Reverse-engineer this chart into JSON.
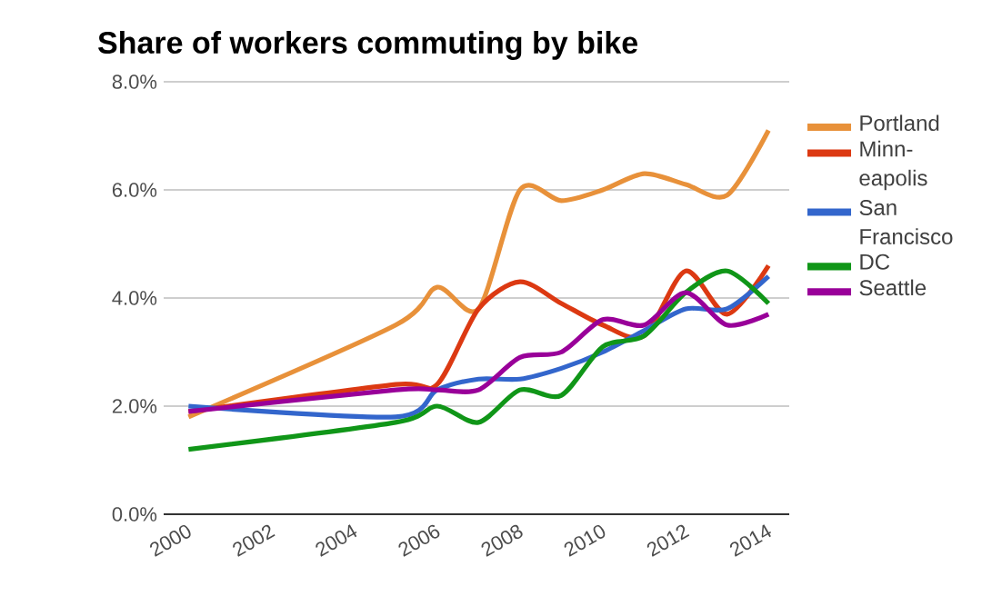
{
  "chart_data": {
    "type": "line",
    "title": "Share of workers commuting by bike",
    "x": [
      2000,
      2005,
      2006,
      2007,
      2008,
      2009,
      2010,
      2011,
      2012,
      2013,
      2014
    ],
    "series": [
      {
        "name": "Portland",
        "color": "#e8913a",
        "values": [
          1.8,
          3.5,
          4.2,
          3.8,
          6.0,
          5.8,
          6.0,
          6.3,
          6.1,
          5.9,
          7.1
        ]
      },
      {
        "name": "Minn-eapolis",
        "color": "#dc3912",
        "values": [
          1.9,
          2.4,
          2.4,
          3.8,
          4.3,
          3.9,
          3.5,
          3.3,
          4.5,
          3.7,
          4.6
        ]
      },
      {
        "name": "San Francisco",
        "color": "#3366cc",
        "values": [
          2.0,
          1.8,
          2.3,
          2.5,
          2.5,
          2.7,
          3.0,
          3.4,
          3.8,
          3.8,
          4.4
        ]
      },
      {
        "name": "DC",
        "color": "#109618",
        "values": [
          1.2,
          1.7,
          2.0,
          1.7,
          2.3,
          2.2,
          3.1,
          3.3,
          4.1,
          4.5,
          3.9
        ]
      },
      {
        "name": "Seattle",
        "color": "#990099",
        "values": [
          1.9,
          2.3,
          2.3,
          2.3,
          2.9,
          3.0,
          3.6,
          3.5,
          4.1,
          3.5,
          3.7
        ]
      }
    ],
    "xlim": [
      1999.4,
      2014.5
    ],
    "ylim": [
      0,
      8
    ],
    "xticks": [
      2000,
      2002,
      2004,
      2006,
      2008,
      2010,
      2012,
      2014
    ],
    "yticks": [
      {
        "value": 0,
        "label": "0.0%"
      },
      {
        "value": 2,
        "label": "2.0%"
      },
      {
        "value": 4,
        "label": "4.0%"
      },
      {
        "value": 6,
        "label": "6.0%"
      },
      {
        "value": 8,
        "label": "8.0%"
      }
    ],
    "grid": "y",
    "legend": "right",
    "marker": "none"
  }
}
